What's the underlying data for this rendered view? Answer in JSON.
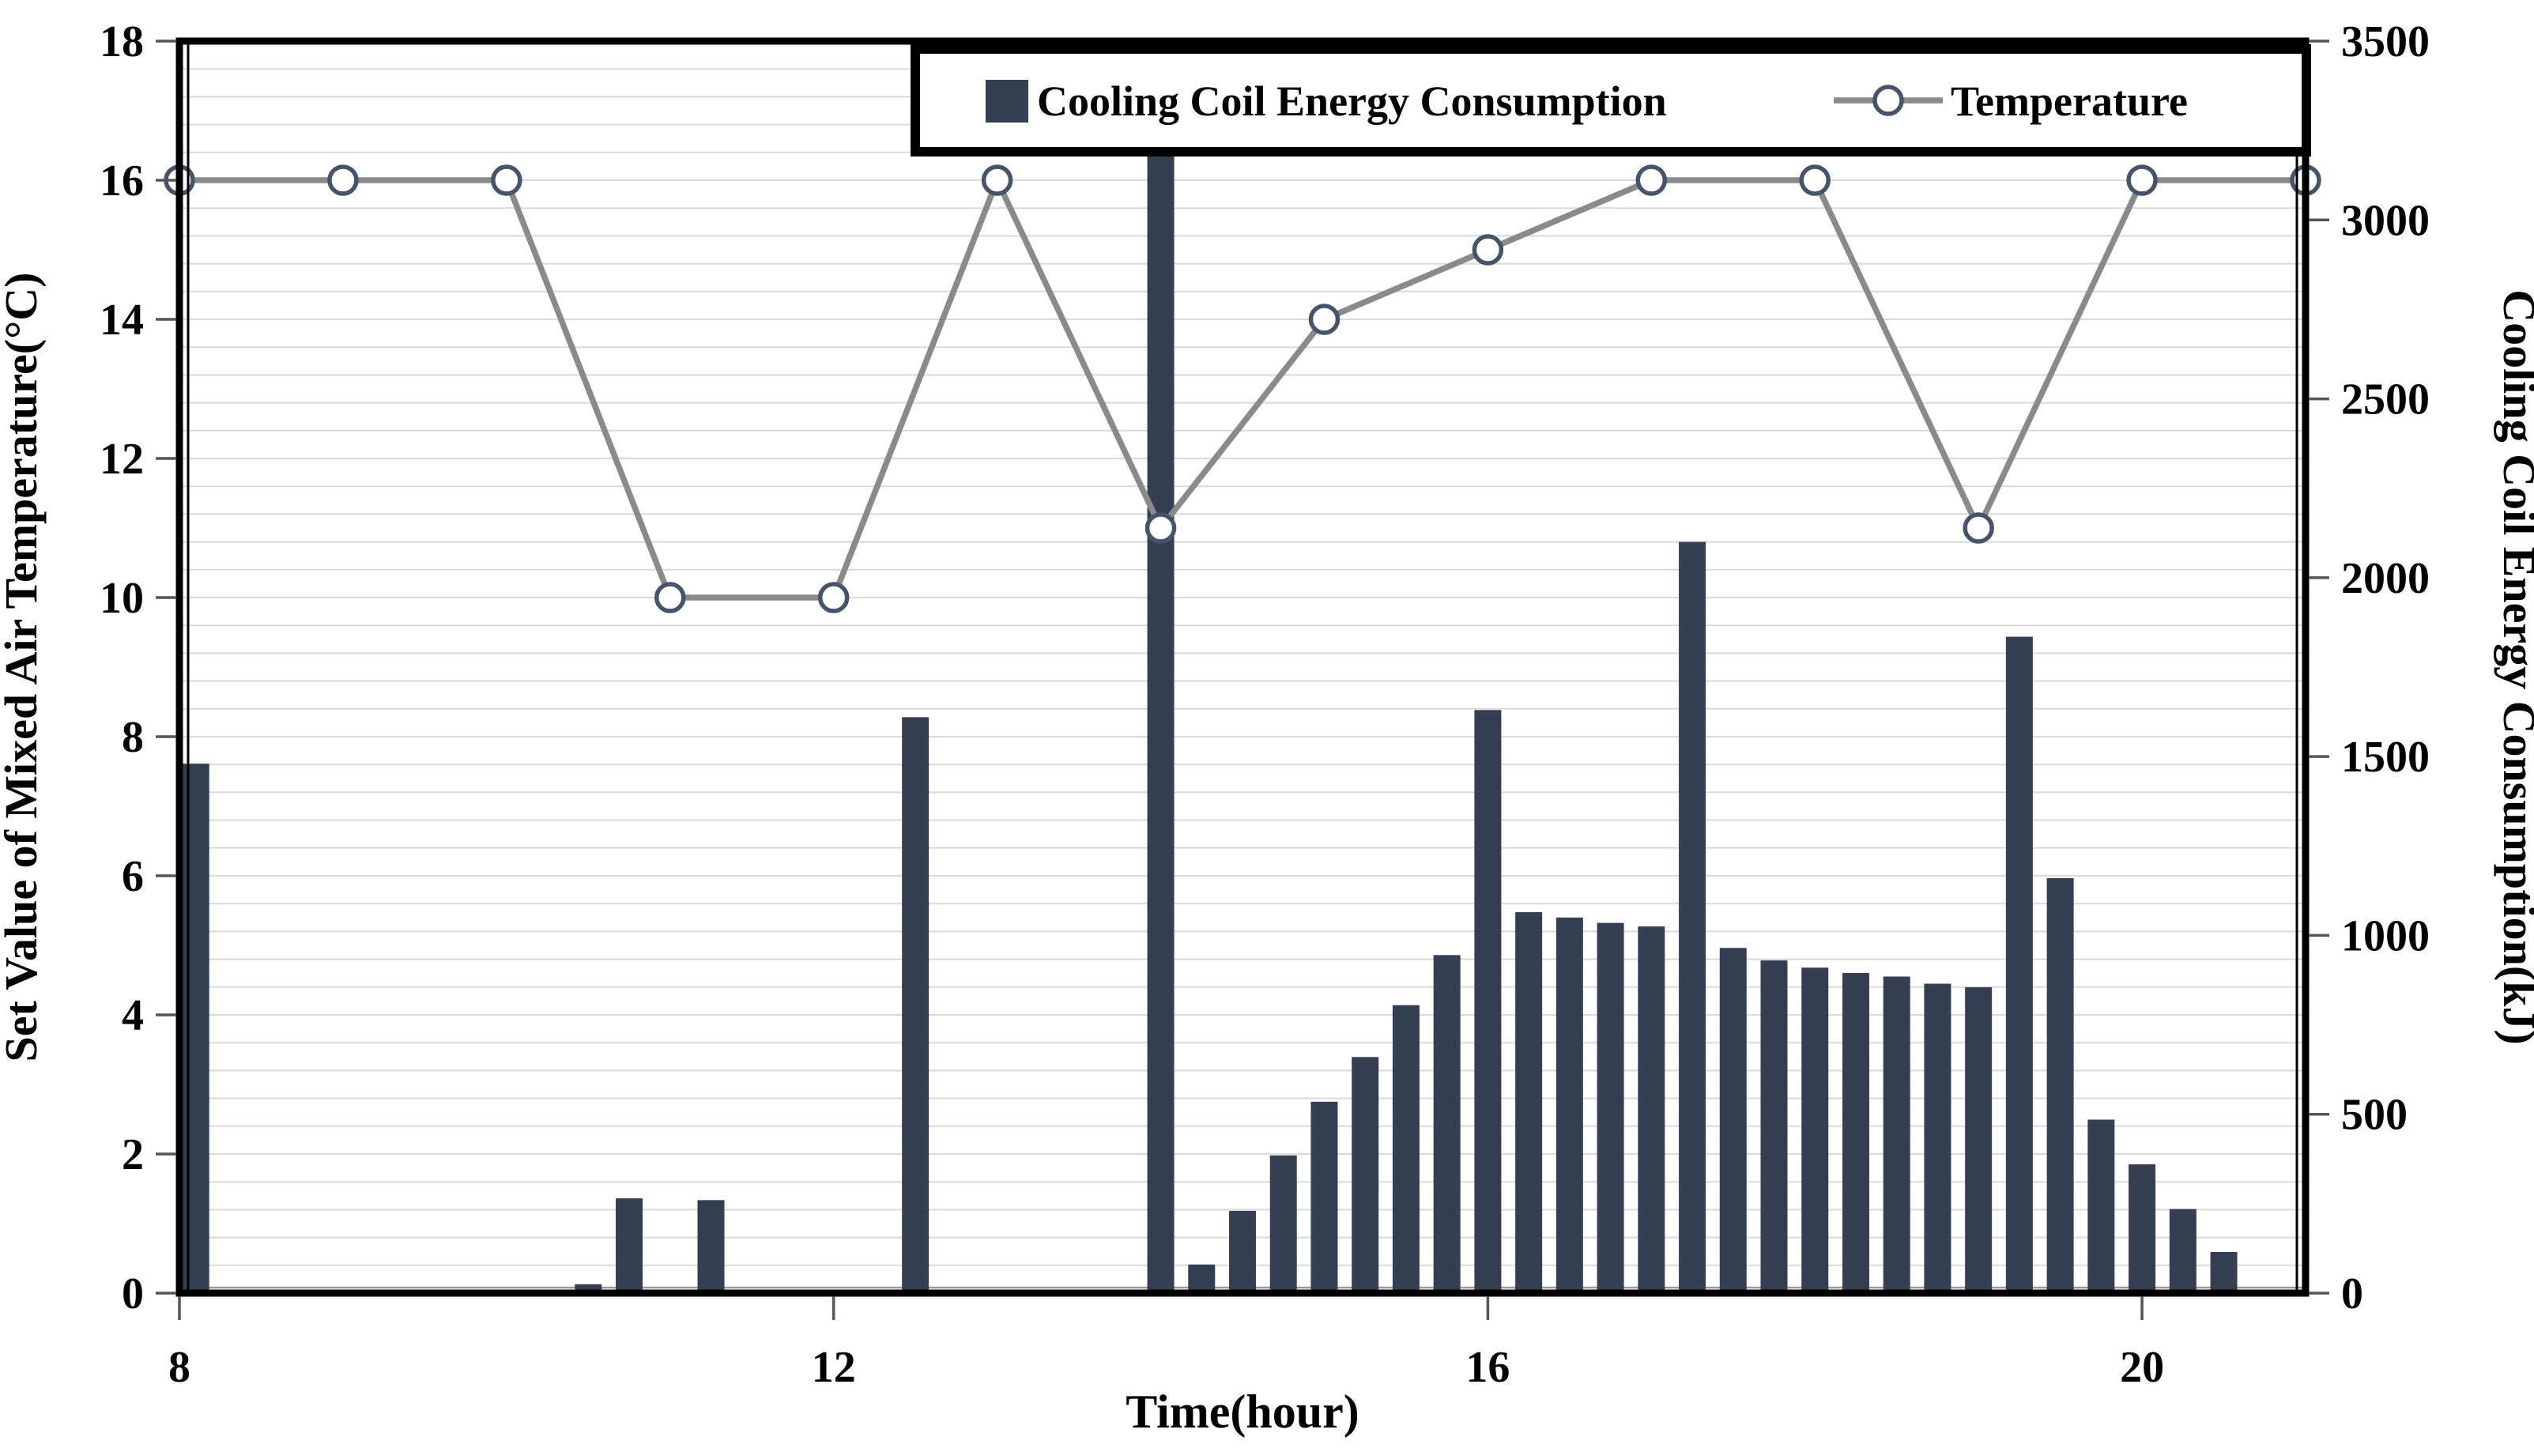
{
  "chart_data": {
    "type": "combo-bar-line",
    "title": "",
    "xlabel": "Time(hour)",
    "left_axis": {
      "title": "Set Value of Mixed Air Temperature(°C)",
      "min": 0,
      "max": 18,
      "major_step": 2,
      "tick_labels": [
        "0",
        "2",
        "4",
        "6",
        "8",
        "10",
        "12",
        "14",
        "16",
        "18"
      ]
    },
    "right_axis": {
      "title": "Cooling Coil Energy Consumption(kJ)",
      "min": 0,
      "max": 3500,
      "major_step": 500,
      "tick_labels": [
        "0",
        "500",
        "1000",
        "1500",
        "2000",
        "2500",
        "3000",
        "3500"
      ]
    },
    "x_axis": {
      "title": "Time(hour)",
      "min": 8,
      "max": 21,
      "tick_hours": [
        8,
        12,
        16,
        20
      ],
      "tick_labels": [
        "8",
        "12",
        "16",
        "20"
      ]
    },
    "grid": {
      "enabled": true,
      "minor_step_c": 0.4,
      "color": "#DBDBDB"
    },
    "legend": {
      "bar_label": "Cooling Coil Energy Consumption",
      "line_label": "Temperature"
    },
    "series": [
      {
        "name": "Cooling Coil Energy Consumption",
        "type": "bar",
        "axis": "right",
        "unit": "kJ",
        "color": "#343F52",
        "points": [
          [
            8.1,
            1480
          ],
          [
            10.5,
            25
          ],
          [
            10.75,
            265
          ],
          [
            11.25,
            260
          ],
          [
            12.5,
            1610
          ],
          [
            14.0,
            3250
          ],
          [
            14.25,
            80
          ],
          [
            14.5,
            230
          ],
          [
            14.75,
            385
          ],
          [
            15.0,
            535
          ],
          [
            15.25,
            660
          ],
          [
            15.5,
            805
          ],
          [
            15.75,
            945
          ],
          [
            16.0,
            1630
          ],
          [
            16.25,
            1065
          ],
          [
            16.5,
            1050
          ],
          [
            16.75,
            1035
          ],
          [
            17.0,
            1025
          ],
          [
            17.25,
            2100
          ],
          [
            17.5,
            965
          ],
          [
            17.75,
            930
          ],
          [
            18.0,
            910
          ],
          [
            18.25,
            895
          ],
          [
            18.5,
            885
          ],
          [
            18.75,
            865
          ],
          [
            19.0,
            855
          ],
          [
            19.25,
            1835
          ],
          [
            19.5,
            1160
          ],
          [
            19.75,
            485
          ],
          [
            20.0,
            360
          ],
          [
            20.25,
            235
          ],
          [
            20.5,
            115
          ]
        ]
      },
      {
        "name": "Temperature",
        "type": "line",
        "axis": "left",
        "unit": "°C",
        "line_color": "#8A8A8A",
        "marker_fill": "#FFFFFF",
        "marker_stroke": "#44546A",
        "hours": [
          8,
          9,
          10,
          11,
          12,
          13,
          14,
          15,
          16,
          17,
          18,
          19,
          20,
          21
        ],
        "temps_c": [
          16,
          16,
          16,
          10,
          10,
          16,
          11,
          14,
          15,
          16,
          16,
          11,
          16,
          16
        ]
      }
    ],
    "colors": {
      "bar": "#343F52",
      "temperature_line": "#8A8A8A",
      "marker_ring": "#44546A",
      "gridline": "#DBDBDB",
      "axis_border": "#000000",
      "background": "#FFFFFF"
    }
  }
}
